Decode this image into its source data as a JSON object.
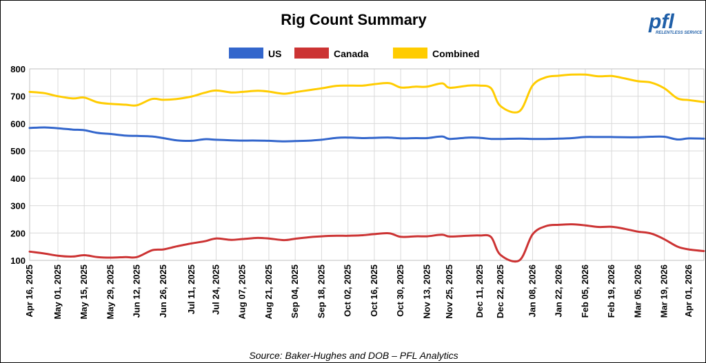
{
  "logo": {
    "text": "pfl",
    "tagline": "RELENTLESS SERVICE"
  },
  "source": "Source: Baker-Hughes and DOB – PFL Analytics",
  "chart_data": {
    "type": "line",
    "title": "Rig Count Summary",
    "xlabel": "",
    "ylabel": "",
    "ylim": [
      100,
      800
    ],
    "yticks": [
      100,
      200,
      300,
      400,
      500,
      600,
      700,
      800
    ],
    "grid": true,
    "legend": "top-center",
    "x_tick_labels": [
      "Apr 16, 2025",
      "May 01, 2025",
      "May 15, 2025",
      "May 29, 2025",
      "Jun 12, 2025",
      "Jun 26, 2025",
      "Jul 11, 2025",
      "Jul 24, 2025",
      "Aug 07, 2025",
      "Aug 21, 2025",
      "Sep 04, 2025",
      "Sep 18, 2025",
      "Oct 02, 2025",
      "Oct 16, 2025",
      "Oct 30, 2025",
      "Nov 13, 2025",
      "Nov 25, 2025",
      "Dec 11, 2025",
      "Dec 22, 2025",
      "Jan 08, 2026",
      "Jan 22, 2026",
      "Feb 05, 2026",
      "Feb 19, 2026",
      "Mar 05, 2026",
      "Mar 19, 2026",
      "Apr 01, 2026"
    ],
    "x": [
      "Apr 16, 2025",
      "Apr 24, 2025",
      "May 01, 2025",
      "May 09, 2025",
      "May 15, 2025",
      "May 22, 2025",
      "May 29, 2025",
      "Jun 06, 2025",
      "Jun 12, 2025",
      "Jun 20, 2025",
      "Jun 26, 2025",
      "Jul 03, 2025",
      "Jul 11, 2025",
      "Jul 18, 2025",
      "Jul 24, 2025",
      "Aug 01, 2025",
      "Aug 07, 2025",
      "Aug 15, 2025",
      "Aug 21, 2025",
      "Aug 29, 2025",
      "Sep 04, 2025",
      "Sep 12, 2025",
      "Sep 18, 2025",
      "Sep 26, 2025",
      "Oct 02, 2025",
      "Oct 10, 2025",
      "Oct 16, 2025",
      "Oct 24, 2025",
      "Oct 30, 2025",
      "Nov 07, 2025",
      "Nov 13, 2025",
      "Nov 21, 2025",
      "Nov 25, 2025",
      "Dec 05, 2025",
      "Dec 11, 2025",
      "Dec 17, 2025",
      "Dec 22, 2025",
      "Jan 01, 2026",
      "Jan 08, 2026",
      "Jan 15, 2026",
      "Jan 22, 2026",
      "Jan 29, 2026",
      "Feb 05, 2026",
      "Feb 12, 2026",
      "Feb 19, 2026",
      "Feb 26, 2026",
      "Mar 05, 2026",
      "Mar 12, 2026",
      "Mar 19, 2026",
      "Mar 26, 2026",
      "Apr 01, 2026",
      "Apr 09, 2026"
    ],
    "series": [
      {
        "name": "US",
        "color": "#3366cc",
        "values": [
          584,
          586,
          583,
          578,
          576,
          566,
          562,
          556,
          555,
          553,
          547,
          539,
          537,
          543,
          541,
          539,
          538,
          538,
          537,
          535,
          536,
          538,
          541,
          548,
          549,
          547,
          548,
          549,
          546,
          547,
          547,
          553,
          544,
          549,
          548,
          544,
          544,
          545,
          544,
          544,
          545,
          547,
          551,
          551,
          551,
          550,
          550,
          552,
          552,
          542,
          546,
          545
        ]
      },
      {
        "name": "Canada",
        "color": "#cc3333",
        "values": [
          132,
          125,
          117,
          114,
          119,
          112,
          110,
          112,
          112,
          137,
          140,
          151,
          162,
          170,
          180,
          175,
          178,
          182,
          180,
          174,
          179,
          185,
          188,
          190,
          190,
          192,
          196,
          199,
          186,
          188,
          188,
          194,
          187,
          190,
          191,
          185,
          120,
          100,
          195,
          225,
          230,
          232,
          228,
          222,
          223,
          215,
          205,
          198,
          177,
          150,
          140,
          134
        ]
      },
      {
        "name": "Combined",
        "color": "#ffcc00",
        "values": [
          716,
          711,
          700,
          692,
          695,
          678,
          672,
          669,
          667,
          690,
          687,
          690,
          699,
          713,
          721,
          714,
          716,
          720,
          717,
          709,
          715,
          723,
          729,
          738,
          739,
          739,
          744,
          748,
          732,
          735,
          735,
          747,
          731,
          739,
          739,
          729,
          664,
          645,
          739,
          769,
          775,
          779,
          779,
          773,
          774,
          765,
          755,
          750,
          729,
          692,
          686,
          679
        ]
      }
    ]
  }
}
